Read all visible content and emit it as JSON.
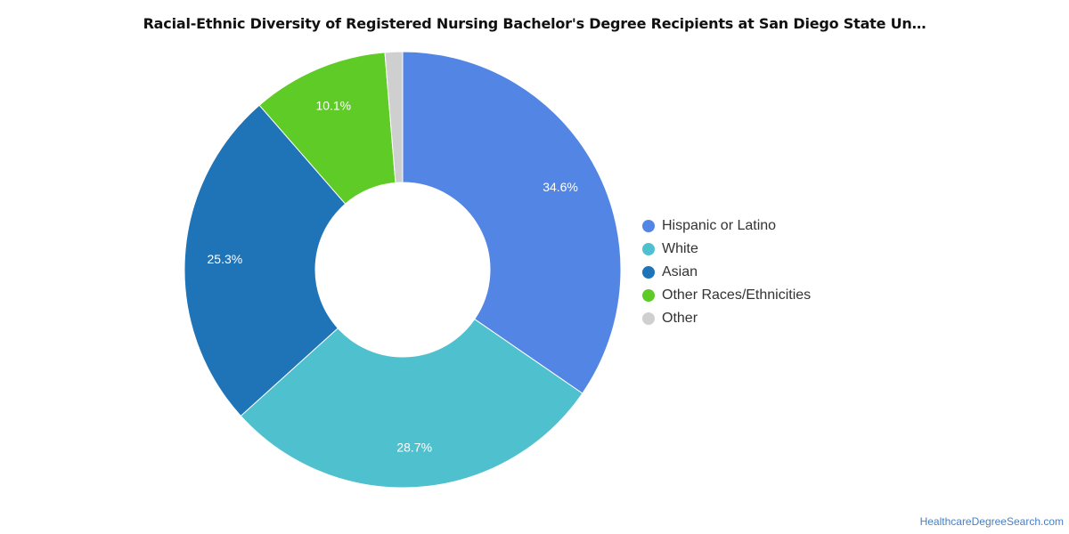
{
  "chart_data": {
    "type": "pie",
    "title": "Racial-Ethnic Diversity of Registered Nursing Bachelor's Degree Recipients at San Diego State Un…",
    "donut": true,
    "legend_position": "right",
    "series": [
      {
        "name": "Hispanic or Latino",
        "value": 34.6,
        "label": "34.6%",
        "color": "#5386e4"
      },
      {
        "name": "White",
        "value": 28.7,
        "label": "28.7%",
        "color": "#4fc0ce"
      },
      {
        "name": "Asian",
        "value": 25.3,
        "label": "25.3%",
        "color": "#1f73b7"
      },
      {
        "name": "Other Races/Ethnicities",
        "value": 10.1,
        "label": "10.1%",
        "color": "#5fcb26"
      },
      {
        "name": "Other",
        "value": 1.3,
        "label": "",
        "color": "#cfcfcf"
      }
    ]
  },
  "footer": {
    "source": "HealthcareDegreeSearch.com"
  }
}
